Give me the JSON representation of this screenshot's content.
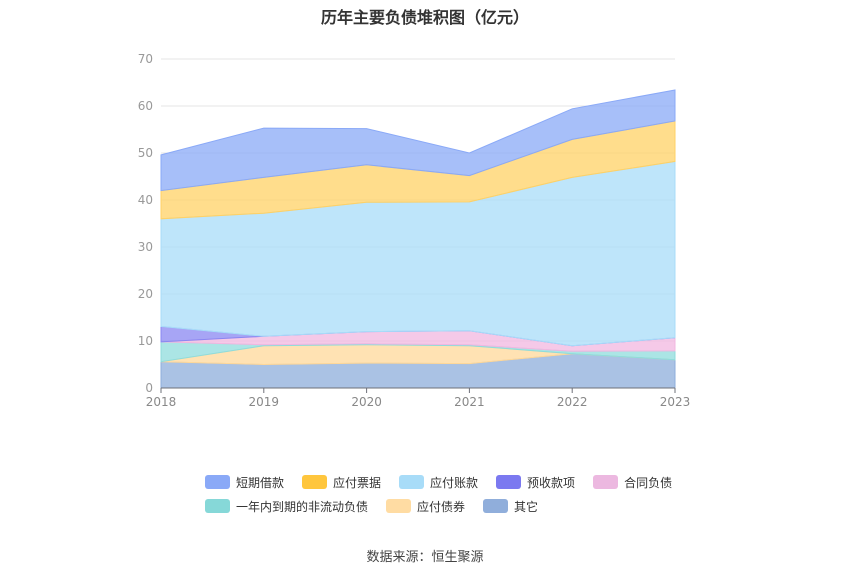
{
  "chart_data": {
    "type": "area",
    "title": "历年主要负债堆积图（亿元）",
    "x": [
      "2018",
      "2019",
      "2020",
      "2021",
      "2022",
      "2023"
    ],
    "ylim": [
      0,
      70
    ],
    "yticks": [
      "0",
      "10",
      "20",
      "30",
      "40",
      "50",
      "60",
      "70"
    ],
    "grid": true,
    "legend_position": "bottom",
    "stacked": true,
    "series": [
      {
        "name": "其它",
        "color": "#8eaedb",
        "values": [
          5.6,
          5.0,
          5.3,
          5.2,
          7.3,
          6.0
        ]
      },
      {
        "name": "应付债券",
        "color": "#ffd899",
        "values": [
          0,
          4.0,
          3.9,
          3.8,
          0,
          0
        ]
      },
      {
        "name": "一年内到期的非流动负债",
        "color": "#8fdcdc",
        "values": [
          4.2,
          0.2,
          0.2,
          0.2,
          0.5,
          1.9
        ]
      },
      {
        "name": "合同负债",
        "color": "#f1b7e0",
        "values": [
          0,
          1.8,
          2.6,
          3.0,
          1.2,
          2.8
        ]
      },
      {
        "name": "预收款项",
        "color": "#8a87f2",
        "values": [
          3.3,
          0,
          0,
          0,
          0,
          0
        ]
      },
      {
        "name": "应付账款",
        "color": "#a8dcf8",
        "values": [
          22.9,
          26.2,
          27.5,
          27.4,
          35.8,
          37.5
        ]
      },
      {
        "name": "应付票据",
        "color": "#ffd166",
        "values": [
          6.0,
          7.6,
          8.0,
          5.6,
          8.1,
          8.6
        ]
      },
      {
        "name": "短期借款",
        "color": "#8aa9f7",
        "values": [
          7.6,
          10.5,
          7.7,
          4.8,
          6.5,
          6.6
        ]
      }
    ]
  },
  "legend": {
    "row1": [
      {
        "name": "短期借款",
        "color": "#8aa9f7"
      },
      {
        "name": "应付票据",
        "color": "#ffc63d"
      },
      {
        "name": "应付账款",
        "color": "#a8dcf8"
      },
      {
        "name": "预收款项",
        "color": "#7b79f0"
      },
      {
        "name": "合同负债",
        "color": "#ecb8e0"
      }
    ],
    "row2": [
      {
        "name": "一年内到期的非流动负债",
        "color": "#86d8d8"
      },
      {
        "name": "应付债券",
        "color": "#ffdca3"
      },
      {
        "name": "其它",
        "color": "#90aedb"
      }
    ]
  },
  "source": "数据来源：恒生聚源"
}
